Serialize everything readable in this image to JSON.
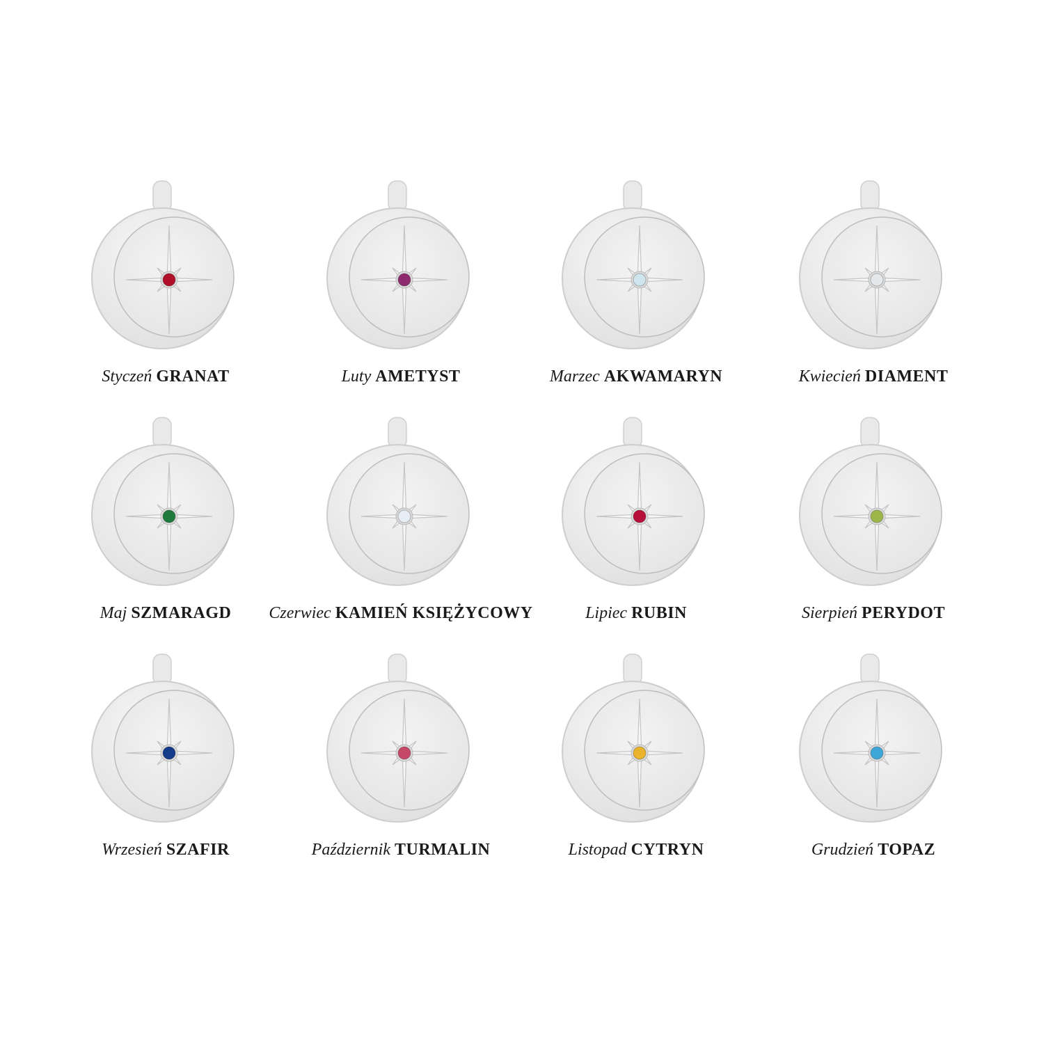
{
  "items": [
    {
      "month": "Styczeń",
      "stone": "GRANAT",
      "color": "#b0102a"
    },
    {
      "month": "Luty",
      "stone": "AMETYST",
      "color": "#8e2a6e"
    },
    {
      "month": "Marzec",
      "stone": "AKWAMARYN",
      "color": "#cfe6ee"
    },
    {
      "month": "Kwiecień",
      "stone": "DIAMENT",
      "color": "#e4e8ea"
    },
    {
      "month": "Maj",
      "stone": "SZMARAGD",
      "color": "#1f7a3c"
    },
    {
      "month": "Czerwiec",
      "stone": "KAMIEŃ KSIĘŻYCOWY",
      "color": "#e8eef6"
    },
    {
      "month": "Lipiec",
      "stone": "RUBIN",
      "color": "#b50f3a"
    },
    {
      "month": "Sierpień",
      "stone": "PERYDOT",
      "color": "#9cb64a"
    },
    {
      "month": "Wrzesień",
      "stone": "SZAFIR",
      "color": "#143a8a"
    },
    {
      "month": "Październik",
      "stone": "TURMALIN",
      "color": "#c64a68"
    },
    {
      "month": "Listopad",
      "stone": "CYTRYN",
      "color": "#e9b32c"
    },
    {
      "month": "Grudzień",
      "stone": "TOPAZ",
      "color": "#3fa6d8"
    }
  ]
}
